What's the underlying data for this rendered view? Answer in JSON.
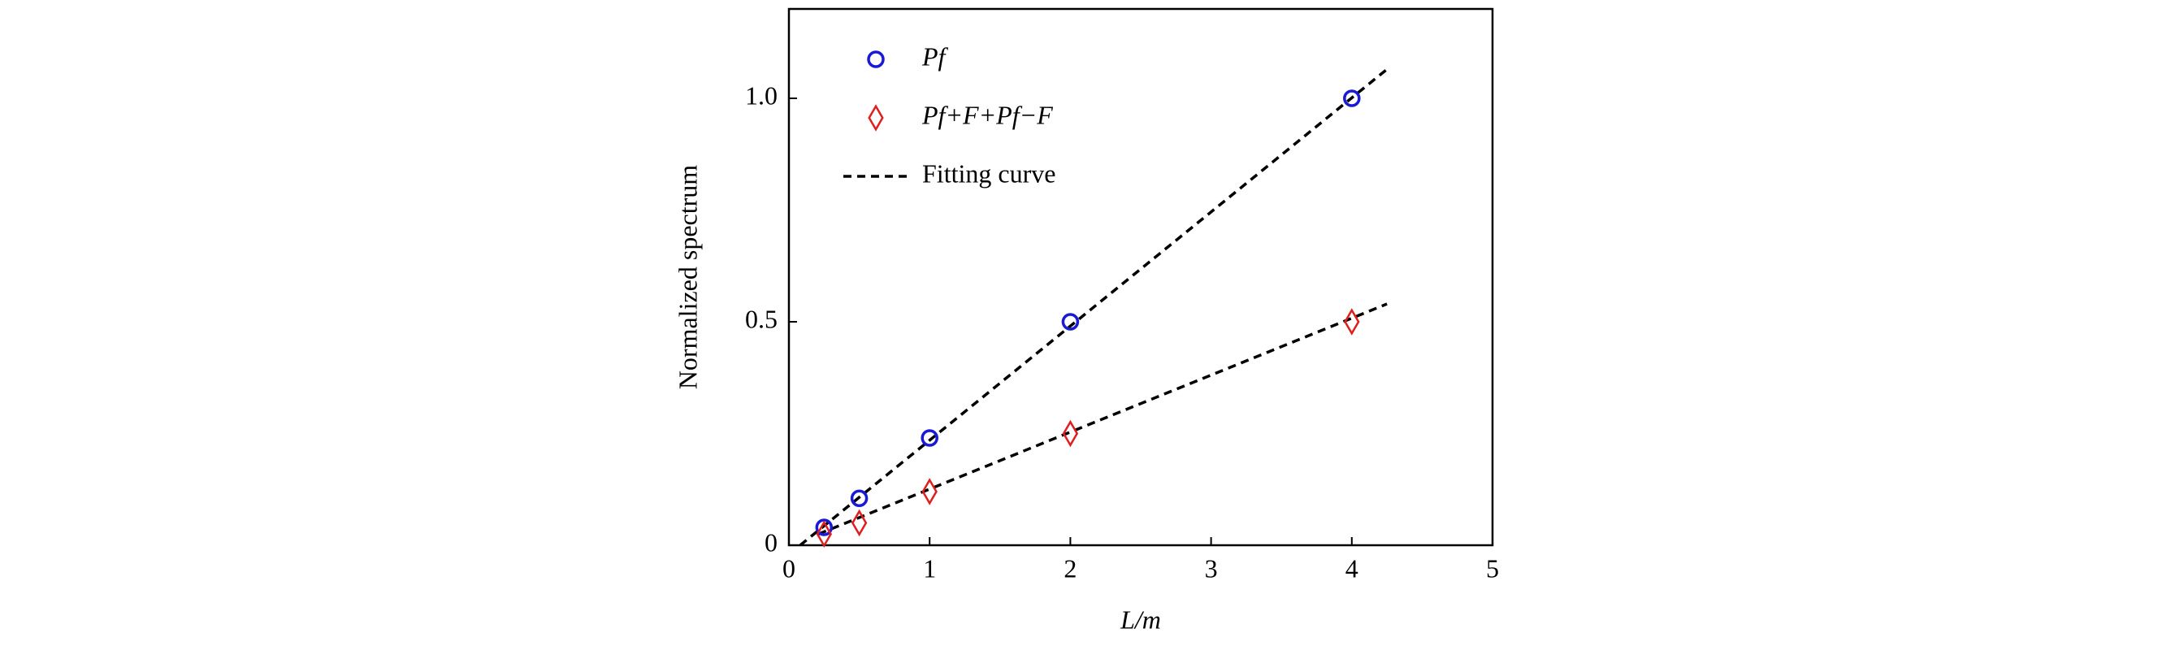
{
  "chart_data": {
    "type": "scatter",
    "xlabel": "L/m",
    "ylabel": "Normalized spectrum",
    "xlim": [
      0,
      5
    ],
    "ylim": [
      0,
      1.2
    ],
    "xticks": [
      0,
      1,
      2,
      3,
      4,
      5
    ],
    "yticks": [
      0,
      0.5,
      {
        "value": 1,
        "label": "1.0"
      }
    ],
    "x": [
      0.25,
      0.5,
      1,
      2,
      4
    ],
    "series": [
      {
        "name": "Pf",
        "color": "#1a1ad6",
        "marker": "circle",
        "values": [
          0.04,
          0.105,
          0.24,
          0.5,
          1.0
        ]
      },
      {
        "name": "Pf+F+Pf−F",
        "color": "#e01e1e",
        "marker": "diamond",
        "values": [
          0.025,
          0.05,
          0.12,
          0.25,
          0.5
        ]
      }
    ],
    "fits": [
      {
        "name": "Fitting curve",
        "color": "#000000",
        "x": [
          0.08,
          4.25
        ],
        "values": [
          0,
          1.065
        ]
      },
      {
        "color": "#000000",
        "x": [
          0.21,
          4.25
        ],
        "values": [
          0.025,
          0.54
        ]
      }
    ]
  }
}
